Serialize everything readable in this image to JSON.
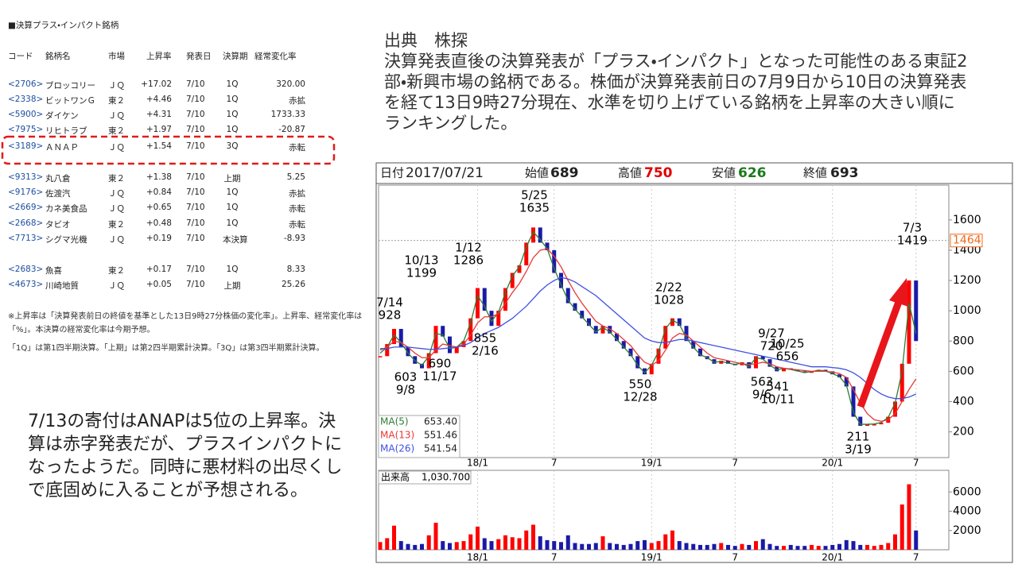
{
  "table": {
    "title": "■決算プラス・インパクト銘柄",
    "header": [
      "コード",
      "銘柄名",
      "市場",
      "上昇率",
      "発表日",
      "決算期",
      "経常変化率"
    ],
    "groups": [
      [
        [
          "<2706>",
          "ブロッコリー",
          "ＪＱ",
          "+17.02",
          "7/10",
          "1Q",
          "320.00"
        ],
        [
          "<2338>",
          "ビットワンＧ",
          "東２",
          "+4.46",
          "7/10",
          "1Q",
          "赤拡"
        ],
        [
          "<5900>",
          "ダイケン",
          "ＪＱ",
          "+4.31",
          "7/10",
          "1Q",
          "1733.33"
        ],
        [
          "<7975>",
          "リヒトラブ",
          "東２",
          "+1.97",
          "7/10",
          "1Q",
          "-20.87"
        ],
        [
          "<3189>",
          "ＡＮＡＰ",
          "ＪＱ",
          "+1.54",
          "7/10",
          "3Q",
          "赤転"
        ]
      ],
      [
        [
          "<9313>",
          "丸八倉",
          "東２",
          "+1.38",
          "7/10",
          "上期",
          "5.25"
        ],
        [
          "<9176>",
          "佐渡汽",
          "ＪＱ",
          "+0.84",
          "7/10",
          "1Q",
          "赤拡"
        ],
        [
          "<2669>",
          "カネ美食品",
          "ＪＱ",
          "+0.65",
          "7/10",
          "1Q",
          "赤転"
        ],
        [
          "<2668>",
          "タビオ",
          "東２",
          "+0.48",
          "7/10",
          "1Q",
          "赤転"
        ],
        [
          "<7713>",
          "シグマ光機",
          "ＪＱ",
          "+0.19",
          "7/10",
          "本決算",
          "-8.93"
        ]
      ],
      [
        [
          "<2683>",
          "魚喜",
          "東２",
          "+0.17",
          "7/10",
          "1Q",
          "8.33"
        ],
        [
          "<4673>",
          "川崎地質",
          "ＪＱ",
          "+0.05",
          "7/10",
          "上期",
          "25.26"
        ]
      ]
    ]
  },
  "notes": [
    "※上昇率は「決算発表前日の終値を基準とした13日9時27分株価の変化率」。上昇率、経常変化率は「%」。本決算の経常変化率は今期予想。",
    "「1Q」は第1四半期決算。「上期」は第2四半期累計決算。「3Q」は第3四半期累計決算。"
  ],
  "source": {
    "heading": "出典　株探",
    "text": "決算発表直後の決算発表が「プラス・インパクト」となった可能性のある東証2部・新興市場の銘柄である。株価が決算発表前日の7月9日から10日の決算発表を経て13日9時27分現在、水準を切り上げている銘柄を上昇率の大きい順にランキングした。"
  },
  "comment": "7/13の寄付はANAPは5位の上昇率。決算は赤字発表だが、プラスインパクトになったようだ。同時に悪材料の出尽くしで底固めに入ることが予想される。",
  "chart_data": [
    {
      "type": "candlestick",
      "header": {
        "date_label": "日付",
        "date": "2017/07/21",
        "open_label": "始値",
        "open": 689,
        "high_label": "高値",
        "high": 750,
        "low_label": "安値",
        "low": 626,
        "close_label": "終値",
        "close": 693
      },
      "categories": [
        null,
        null,
        null,
        null,
        null,
        null,
        null,
        null,
        null,
        null,
        null,
        null,
        null,
        null,
        "18/1",
        null,
        null,
        null,
        null,
        null,
        null,
        null,
        null,
        null,
        null,
        "7",
        null,
        null,
        null,
        null,
        null,
        null,
        null,
        null,
        null,
        null,
        null,
        null,
        null,
        "19/1",
        null,
        null,
        null,
        null,
        null,
        null,
        null,
        null,
        null,
        null,
        null,
        "7",
        null,
        null,
        null,
        null,
        null,
        null,
        null,
        null,
        null,
        null,
        null,
        null,
        null,
        "20/1",
        null,
        null,
        null,
        null,
        null,
        null,
        null,
        null,
        null,
        null,
        null,
        "7"
      ],
      "values": [
        700,
        780,
        880,
        760,
        700,
        650,
        620,
        720,
        900,
        830,
        720,
        760,
        800,
        950,
        1150,
        1000,
        900,
        1000,
        1150,
        1250,
        1300,
        1450,
        1550,
        1450,
        1400,
        1250,
        1150,
        1050,
        1000,
        950,
        900,
        850,
        900,
        850,
        800,
        750,
        700,
        620,
        580,
        650,
        750,
        900,
        950,
        900,
        800,
        750,
        700,
        680,
        650,
        670,
        650,
        640,
        660,
        620,
        700,
        680,
        630,
        600,
        620,
        610,
        600,
        590,
        600,
        610,
        600,
        580,
        560,
        500,
        300,
        240,
        250,
        250,
        260,
        300,
        400,
        650,
        1200,
        800
      ],
      "up_color": "#ff0000",
      "down_color": "#1a1aa8",
      "series": [
        {
          "name": "MA(5)",
          "legend_value": "653.40",
          "color": "#2e7d32",
          "values": [
            720,
            760,
            840,
            790,
            720,
            670,
            640,
            700,
            850,
            840,
            750,
            760,
            800,
            920,
            1100,
            1030,
            930,
            990,
            1120,
            1230,
            1290,
            1420,
            1520,
            1470,
            1410,
            1280,
            1170,
            1070,
            1010,
            960,
            910,
            860,
            890,
            860,
            810,
            760,
            710,
            640,
            590,
            640,
            730,
            880,
            940,
            910,
            820,
            760,
            710,
            690,
            660,
            665,
            655,
            645,
            655,
            630,
            690,
            680,
            640,
            610,
            620,
            612,
            602,
            592,
            598,
            608,
            602,
            585,
            565,
            510,
            330,
            250,
            250,
            252,
            262,
            295,
            390,
            600,
            1050,
            850
          ]
        },
        {
          "name": "MA(13)",
          "legend_value": "551.46",
          "color": "#e53935",
          "values": [
            740,
            760,
            800,
            790,
            760,
            720,
            690,
            690,
            740,
            780,
            770,
            760,
            780,
            840,
            920,
            960,
            960,
            980,
            1050,
            1120,
            1180,
            1260,
            1350,
            1400,
            1410,
            1360,
            1290,
            1200,
            1120,
            1050,
            990,
            930,
            900,
            880,
            850,
            810,
            770,
            710,
            660,
            640,
            670,
            740,
            820,
            850,
            840,
            800,
            760,
            720,
            690,
            680,
            670,
            660,
            650,
            645,
            650,
            660,
            650,
            630,
            620,
            615,
            610,
            605,
            600,
            600,
            600,
            595,
            585,
            560,
            480,
            390,
            320,
            280,
            270,
            280,
            320,
            400,
            480,
            550
          ]
        },
        {
          "name": "MA(26)",
          "legend_value": "541.54",
          "color": "#3f51e0",
          "values": [
            750,
            750,
            760,
            760,
            760,
            755,
            750,
            745,
            745,
            750,
            755,
            760,
            770,
            790,
            820,
            850,
            870,
            890,
            920,
            950,
            990,
            1030,
            1080,
            1130,
            1170,
            1200,
            1220,
            1210,
            1190,
            1160,
            1130,
            1100,
            1060,
            1020,
            980,
            940,
            900,
            860,
            820,
            800,
            790,
            790,
            800,
            810,
            810,
            800,
            790,
            780,
            770,
            760,
            750,
            740,
            730,
            720,
            710,
            700,
            690,
            680,
            670,
            660,
            650,
            640,
            630,
            630,
            630,
            625,
            620,
            610,
            590,
            560,
            520,
            480,
            450,
            430,
            420,
            420,
            430,
            450
          ]
        }
      ],
      "annotations": [
        {
          "date": "7/14",
          "value": 928
        },
        {
          "date": "9/8",
          "value": 603
        },
        {
          "date": "10/13",
          "value": 1199
        },
        {
          "date": "11/17",
          "value": 690
        },
        {
          "date": "1/12",
          "value": 1286
        },
        {
          "date": "2/16",
          "value": 855
        },
        {
          "date": "5/25",
          "value": 1635
        },
        {
          "date": "12/28",
          "value": 550
        },
        {
          "date": "2/22",
          "value": 1028
        },
        {
          "date": "9/27",
          "value": 720
        },
        {
          "date": "10/25",
          "value": 656
        },
        {
          "date": "9/6",
          "value": 563
        },
        {
          "date": "10/11",
          "value": 541
        },
        {
          "date": "3/19",
          "value": 211
        },
        {
          "date": "7/3",
          "value": 1419
        }
      ],
      "current": 1464,
      "current_color": "#f26b1d",
      "ylim": [
        30,
        1830
      ],
      "yticks": [
        200,
        400,
        600,
        800,
        1000,
        1200,
        1400,
        1600
      ],
      "grid": true
    },
    {
      "type": "bar",
      "label": "出来高",
      "latest": "1,030.700",
      "categories": [
        null,
        null,
        null,
        null,
        null,
        null,
        null,
        null,
        null,
        null,
        null,
        null,
        null,
        null,
        "18/1",
        null,
        null,
        null,
        null,
        null,
        null,
        null,
        null,
        null,
        null,
        "7",
        null,
        null,
        null,
        null,
        null,
        null,
        null,
        null,
        null,
        null,
        null,
        null,
        null,
        "19/1",
        null,
        null,
        null,
        null,
        null,
        null,
        null,
        null,
        null,
        null,
        null,
        "7",
        null,
        null,
        null,
        null,
        null,
        null,
        null,
        null,
        null,
        null,
        null,
        null,
        null,
        "20/1",
        null,
        null,
        null,
        null,
        null,
        null,
        null,
        null,
        null,
        null,
        null,
        "7"
      ],
      "values": [
        800,
        1200,
        2500,
        900,
        600,
        500,
        600,
        1500,
        2800,
        900,
        700,
        800,
        900,
        1600,
        2400,
        1200,
        900,
        1100,
        1500,
        1300,
        1200,
        2000,
        2600,
        1400,
        1000,
        900,
        800,
        1500,
        700,
        600,
        600,
        700,
        1400,
        700,
        600,
        500,
        600,
        900,
        1000,
        700,
        900,
        1600,
        2000,
        900,
        700,
        600,
        500,
        500,
        600,
        700,
        500,
        400,
        600,
        500,
        900,
        1100,
        600,
        400,
        400,
        500,
        400,
        400,
        500,
        400,
        400,
        500,
        600,
        1000,
        900,
        500,
        500,
        400,
        500,
        700,
        1600,
        4700,
        6800,
        2000
      ],
      "ylim": [
        0,
        8250
      ],
      "yticks": [
        2000,
        4000,
        6000
      ],
      "grid": true
    }
  ]
}
